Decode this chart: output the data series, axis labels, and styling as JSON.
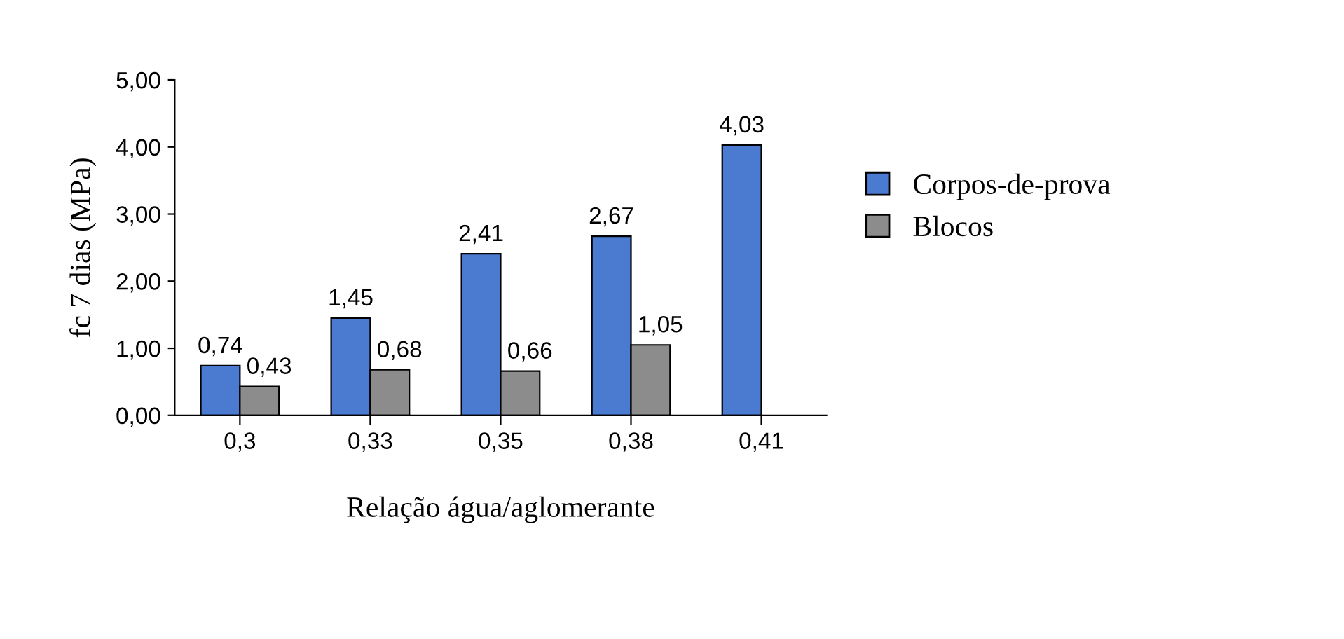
{
  "chart_data": {
    "type": "bar",
    "xlabel": "Relação água/aglomerante",
    "ylabel": "fc 7 dias (MPa)",
    "categories": [
      "0,3",
      "0,33",
      "0,35",
      "0,38",
      "0,41"
    ],
    "series": [
      {
        "name": "Corpos-de-prova",
        "color": "#4a7bd0",
        "values": [
          0.74,
          1.45,
          2.41,
          2.67,
          4.03
        ],
        "value_labels": [
          "0,74",
          "1,45",
          "2,41",
          "2,67",
          "4,03"
        ]
      },
      {
        "name": "Blocos",
        "color": "#8c8c8c",
        "values": [
          0.43,
          0.68,
          0.66,
          1.05,
          null
        ],
        "value_labels": [
          "0,43",
          "0,68",
          "0,66",
          "1,05",
          null
        ]
      }
    ],
    "ylim": [
      0,
      5
    ],
    "yticks": [
      {
        "value": 0,
        "label": "0,00"
      },
      {
        "value": 1,
        "label": "1,00"
      },
      {
        "value": 2,
        "label": "2,00"
      },
      {
        "value": 3,
        "label": "3,00"
      },
      {
        "value": 4,
        "label": "4,00"
      },
      {
        "value": 5,
        "label": "5,00"
      }
    ],
    "grid": false,
    "legend": "right"
  }
}
